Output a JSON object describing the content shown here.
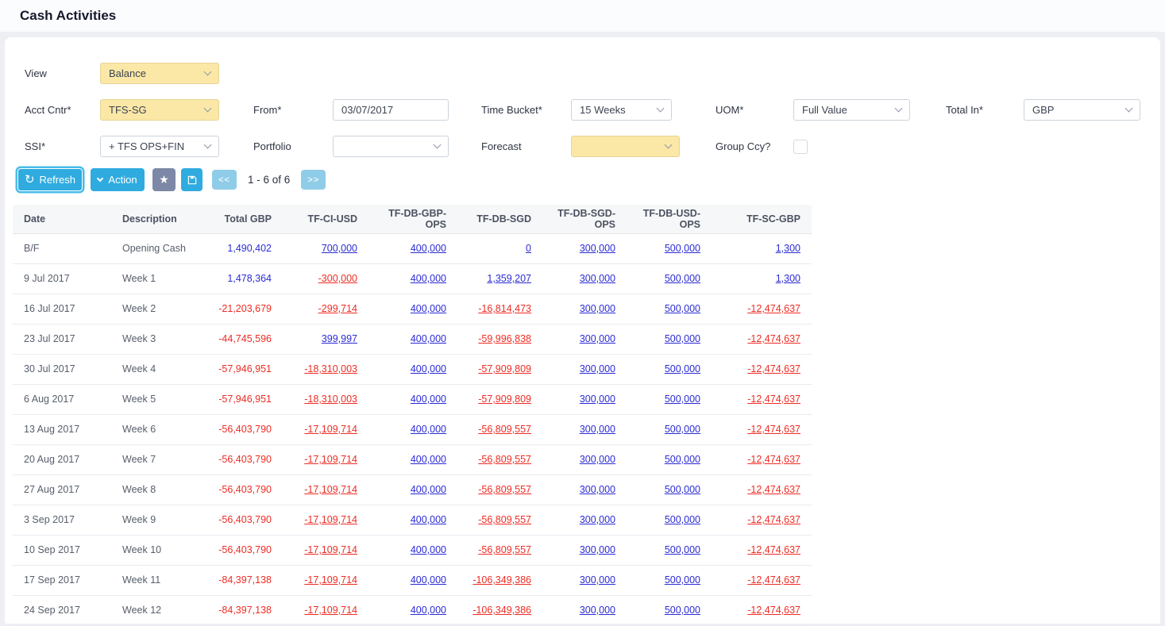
{
  "page": {
    "title": "Cash Activities"
  },
  "filters": {
    "view": {
      "label": "View",
      "value": "Balance"
    },
    "acct_cntr": {
      "label": "Acct Cntr*",
      "value": "TFS-SG"
    },
    "from": {
      "label": "From*",
      "value": "03/07/2017"
    },
    "time_bucket": {
      "label": "Time Bucket*",
      "value": "15 Weeks"
    },
    "uom": {
      "label": "UOM*",
      "value": "Full Value"
    },
    "total_in": {
      "label": "Total In*",
      "value": "GBP"
    },
    "ssi": {
      "label": "SSI*",
      "value": "+ TFS OPS+FIN"
    },
    "portfolio": {
      "label": "Portfolio",
      "value": ""
    },
    "forecast": {
      "label": "Forecast",
      "value": ""
    },
    "group_ccy": {
      "label": "Group Ccy?",
      "checked": false
    }
  },
  "toolbar": {
    "refresh_label": "Refresh",
    "action_label": "Action",
    "icons": {
      "refresh": "↻",
      "action_chevron": "chevron-down",
      "favorite": "★",
      "save": "floppy-disk"
    },
    "pagination": {
      "prev_label": "<<",
      "info": "1 - 6 of 6",
      "next_label": ">>"
    }
  },
  "table": {
    "columns": [
      {
        "label": "Date",
        "align": "left"
      },
      {
        "label": "Description",
        "align": "left"
      },
      {
        "label": "Total GBP",
        "align": "right"
      },
      {
        "label": "TF-CI-USD",
        "align": "right"
      },
      {
        "label": "TF-DB-GBP-OPS",
        "align": "right"
      },
      {
        "label": "TF-DB-SGD",
        "align": "right"
      },
      {
        "label": "TF-DB-SGD-OPS",
        "align": "right"
      },
      {
        "label": "TF-DB-USD-OPS",
        "align": "right"
      },
      {
        "label": "TF-SC-GBP",
        "align": "right"
      }
    ],
    "rows": [
      {
        "date": "B/F",
        "description": "Opening Cash",
        "values": [
          "1,490,402",
          "700,000",
          "400,000",
          "0",
          "300,000",
          "500,000",
          "1,300"
        ]
      },
      {
        "date": "9 Jul 2017",
        "description": "Week 1",
        "values": [
          "1,478,364",
          "-300,000",
          "400,000",
          "1,359,207",
          "300,000",
          "500,000",
          "1,300"
        ]
      },
      {
        "date": "16 Jul 2017",
        "description": "Week 2",
        "values": [
          "-21,203,679",
          "-299,714",
          "400,000",
          "-16,814,473",
          "300,000",
          "500,000",
          "-12,474,637"
        ]
      },
      {
        "date": "23 Jul 2017",
        "description": "Week 3",
        "values": [
          "-44,745,596",
          "399,997",
          "400,000",
          "-59,996,838",
          "300,000",
          "500,000",
          "-12,474,637"
        ]
      },
      {
        "date": "30 Jul 2017",
        "description": "Week 4",
        "values": [
          "-57,946,951",
          "-18,310,003",
          "400,000",
          "-57,909,809",
          "300,000",
          "500,000",
          "-12,474,637"
        ]
      },
      {
        "date": "6 Aug 2017",
        "description": "Week 5",
        "values": [
          "-57,946,951",
          "-18,310,003",
          "400,000",
          "-57,909,809",
          "300,000",
          "500,000",
          "-12,474,637"
        ]
      },
      {
        "date": "13 Aug 2017",
        "description": "Week 6",
        "values": [
          "-56,403,790",
          "-17,109,714",
          "400,000",
          "-56,809,557",
          "300,000",
          "500,000",
          "-12,474,637"
        ]
      },
      {
        "date": "20 Aug 2017",
        "description": "Week 7",
        "values": [
          "-56,403,790",
          "-17,109,714",
          "400,000",
          "-56,809,557",
          "300,000",
          "500,000",
          "-12,474,637"
        ]
      },
      {
        "date": "27 Aug 2017",
        "description": "Week 8",
        "values": [
          "-56,403,790",
          "-17,109,714",
          "400,000",
          "-56,809,557",
          "300,000",
          "500,000",
          "-12,474,637"
        ]
      },
      {
        "date": "3 Sep 2017",
        "description": "Week 9",
        "values": [
          "-56,403,790",
          "-17,109,714",
          "400,000",
          "-56,809,557",
          "300,000",
          "500,000",
          "-12,474,637"
        ]
      },
      {
        "date": "10 Sep 2017",
        "description": "Week 10",
        "values": [
          "-56,403,790",
          "-17,109,714",
          "400,000",
          "-56,809,557",
          "300,000",
          "500,000",
          "-12,474,637"
        ]
      },
      {
        "date": "17 Sep 2017",
        "description": "Week 11",
        "values": [
          "-84,397,138",
          "-17,109,714",
          "400,000",
          "-106,349,386",
          "300,000",
          "500,000",
          "-12,474,637"
        ]
      },
      {
        "date": "24 Sep 2017",
        "description": "Week 12",
        "values": [
          "-84,397,138",
          "-17,109,714",
          "400,000",
          "-106,349,386",
          "300,000",
          "500,000",
          "-12,474,637"
        ]
      }
    ]
  },
  "colors": {
    "positive_link": "#2b2bd4",
    "negative": "#ee2c24",
    "primary_button": "#2fabdf",
    "pagination_button": "#8fcce8",
    "favorite_button": "#7d87a6",
    "highlight_field": "#fbe8a6"
  }
}
